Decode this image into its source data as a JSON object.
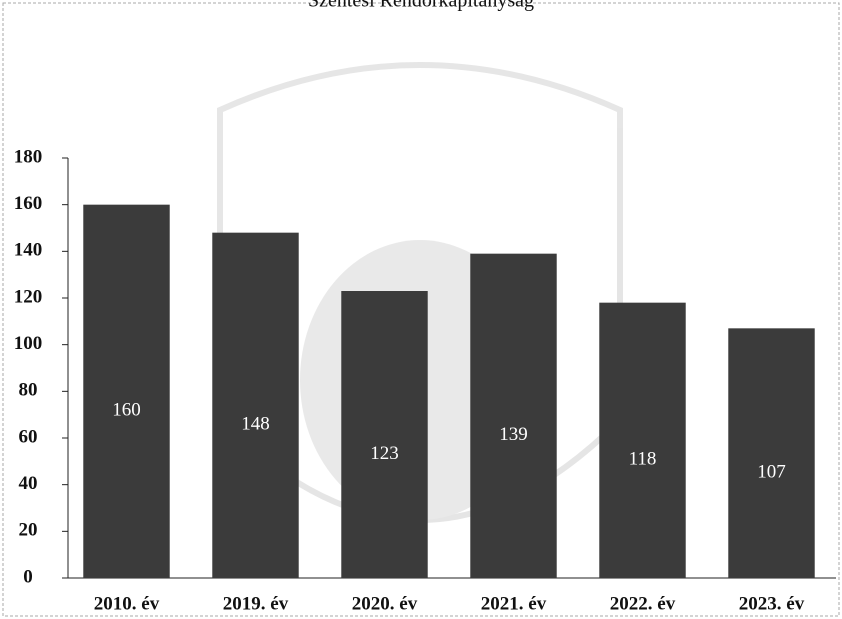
{
  "chart_data": {
    "type": "bar",
    "title": "Szentesi Rendőrkapitányság",
    "categories": [
      "2010. év",
      "2019. év",
      "2020. év",
      "2021. év",
      "2022. év",
      "2023. év"
    ],
    "values": [
      160,
      148,
      123,
      139,
      118,
      107
    ],
    "color": "#3b3b3b",
    "ylim": [
      0,
      180
    ],
    "yticks": [
      0,
      20,
      40,
      60,
      80,
      100,
      120,
      140,
      160,
      180
    ],
    "grid": false
  }
}
